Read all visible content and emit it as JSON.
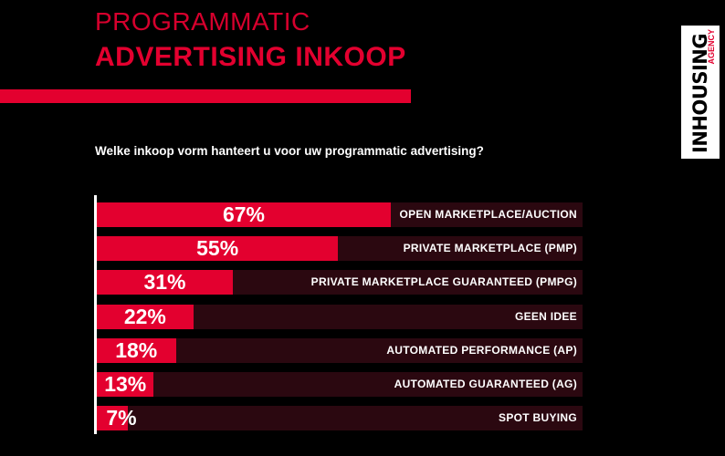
{
  "header": {
    "title_line1": "PROGRAMMATIC",
    "title_line2": "ADVERTISING INKOOP"
  },
  "logo": {
    "main": "INHOUSING",
    "sub": "AGENCY"
  },
  "question": "Welke inkoop vorm hanteert u voor uw programmatic advertising?",
  "colors": {
    "accent": "#e3002f",
    "bar_track": "#2b0810",
    "background": "#000000"
  },
  "chart_data": {
    "type": "bar",
    "orientation": "horizontal",
    "categories": [
      "OPEN MARKETPLACE/AUCTION",
      "PRIVATE MARKETPLACE (PMP)",
      "PRIVATE MARKETPLACE GUARANTEED (PMPG)",
      "GEEN IDEE",
      "AUTOMATED PERFORMANCE (AP)",
      "AUTOMATED GUARANTEED (AG)",
      "SPOT BUYING"
    ],
    "values": [
      67,
      55,
      31,
      22,
      18,
      13,
      7
    ],
    "labels": [
      "67%",
      "55%",
      "31%",
      "22%",
      "18%",
      "13%",
      "7%"
    ],
    "xlim": [
      0,
      100
    ],
    "grid": false
  }
}
